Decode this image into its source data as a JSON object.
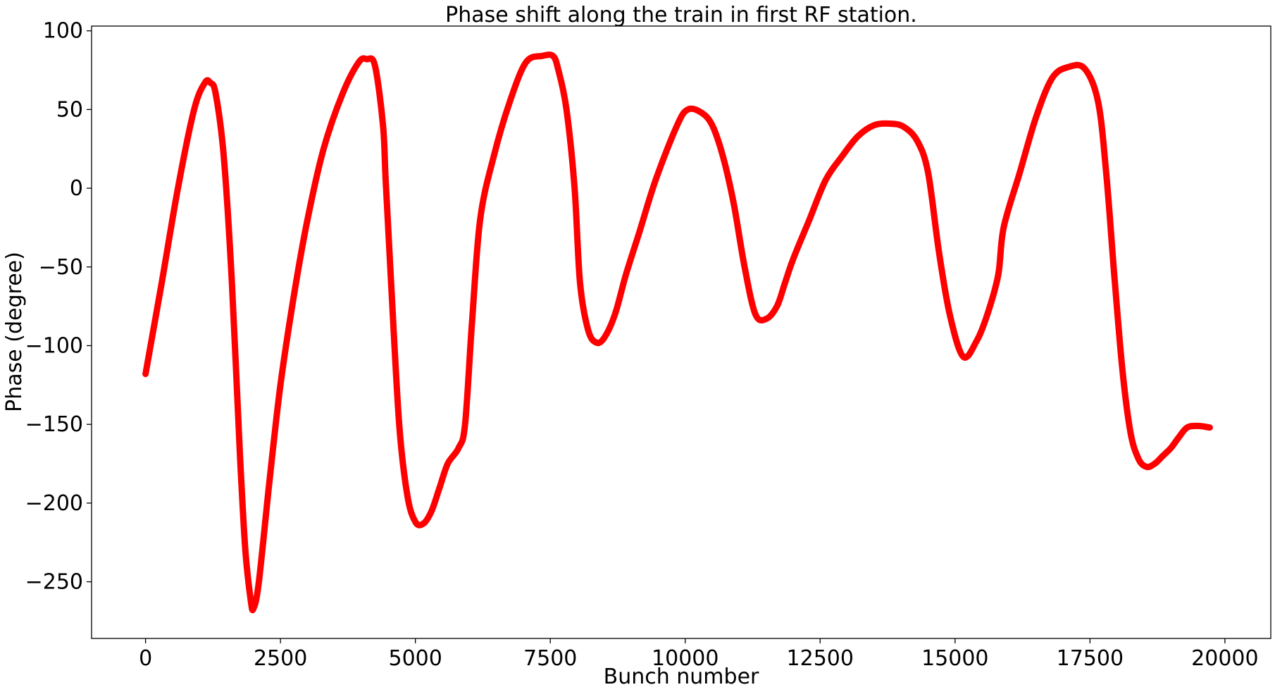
{
  "chart_data": {
    "type": "line",
    "title": "Phase shift along the train in first RF station.",
    "xlabel": "Bunch number",
    "ylabel": "Phase (degree)",
    "xlim": [
      -1000,
      20850
    ],
    "ylim": [
      -286,
      103
    ],
    "xticks": [
      0,
      2500,
      5000,
      7500,
      10000,
      12500,
      15000,
      17500,
      20000
    ],
    "xtick_labels": [
      "0",
      "2500",
      "5000",
      "7500",
      "10000",
      "12500",
      "15000",
      "17500",
      "20000"
    ],
    "yticks": [
      100,
      50,
      0,
      -50,
      -100,
      -150,
      -200,
      -250
    ],
    "ytick_labels": [
      "100",
      "50",
      "0",
      "−50",
      "−100",
      "−150",
      "−200",
      "−250"
    ],
    "grid": false,
    "series": [
      {
        "color": "#ff0000",
        "x": [
          0,
          300,
          600,
          900,
          1100,
          1200,
          1300,
          1450,
          1600,
          1750,
          1850,
          1950,
          2000,
          2100,
          2300,
          2500,
          2750,
          3000,
          3300,
          3650,
          3950,
          4100,
          4250,
          4400,
          4450,
          4550,
          4700,
          4850,
          5000,
          5150,
          5300,
          5450,
          5600,
          5800,
          5920,
          6050,
          6200,
          6450,
          6750,
          7050,
          7350,
          7550,
          7650,
          7800,
          7950,
          8050,
          8200,
          8350,
          8500,
          8700,
          8900,
          9150,
          9450,
          9850,
          10050,
          10300,
          10500,
          10700,
          10900,
          11100,
          11300,
          11500,
          11700,
          11850,
          12000,
          12300,
          12600,
          12900,
          13200,
          13500,
          13800,
          14050,
          14300,
          14500,
          14700,
          14900,
          15150,
          15400,
          15600,
          15800,
          15900,
          16200,
          16500,
          16800,
          17100,
          17400,
          17650,
          17800,
          17950,
          18100,
          18250,
          18400,
          18550,
          18700,
          18850,
          19000,
          19150,
          19300,
          19500,
          19720
        ],
        "y": [
          -118,
          -60,
          0,
          50,
          67,
          67,
          60,
          20,
          -60,
          -170,
          -230,
          -262,
          -267,
          -250,
          -185,
          -125,
          -68,
          -20,
          25,
          60,
          80,
          82,
          78,
          40,
          5,
          -60,
          -150,
          -195,
          -212,
          -213,
          -205,
          -190,
          -175,
          -165,
          -150,
          -85,
          -20,
          20,
          55,
          80,
          84,
          84,
          75,
          50,
          0,
          -60,
          -90,
          -98,
          -95,
          -80,
          -55,
          -28,
          5,
          40,
          50,
          48,
          40,
          20,
          -10,
          -50,
          -80,
          -83,
          -75,
          -60,
          -45,
          -20,
          5,
          20,
          33,
          40,
          41,
          39,
          30,
          10,
          -40,
          -80,
          -107,
          -97,
          -80,
          -55,
          -25,
          10,
          45,
          70,
          77,
          76,
          55,
          10,
          -55,
          -115,
          -155,
          -172,
          -177,
          -175,
          -170,
          -165,
          -158,
          -152,
          -151,
          -152
        ]
      }
    ]
  }
}
